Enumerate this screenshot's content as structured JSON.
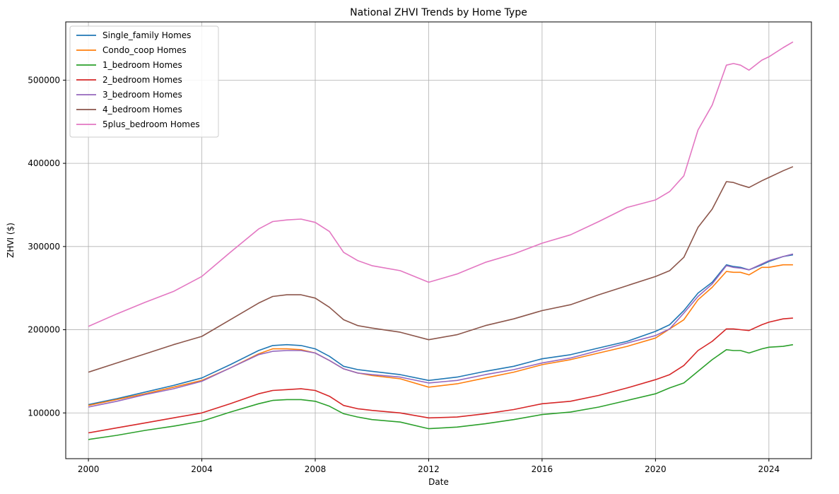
{
  "chart_data": {
    "type": "line",
    "title": "National ZHVI Trends by Home Type",
    "xlabel": "Date",
    "ylabel": "ZHVI ($)",
    "xlim": [
      1999.2,
      2025.5
    ],
    "ylim": [
      45000,
      570000
    ],
    "xticks": [
      2000,
      2004,
      2008,
      2012,
      2016,
      2020,
      2024
    ],
    "xtick_labels": [
      "2000",
      "2004",
      "2008",
      "2012",
      "2016",
      "2020",
      "2024"
    ],
    "yticks": [
      100000,
      200000,
      300000,
      400000,
      500000
    ],
    "ytick_labels": [
      "100000",
      "200000",
      "300000",
      "400000",
      "500000"
    ],
    "grid": true,
    "legend_position": "top-left",
    "x": [
      2000.0,
      2001.0,
      2002.0,
      2003.0,
      2004.0,
      2005.0,
      2006.0,
      2006.5,
      2007.0,
      2007.5,
      2008.0,
      2008.5,
      2009.0,
      2009.5,
      2010.0,
      2011.0,
      2012.0,
      2013.0,
      2014.0,
      2015.0,
      2016.0,
      2017.0,
      2018.0,
      2019.0,
      2020.0,
      2020.5,
      2021.0,
      2021.5,
      2022.0,
      2022.5,
      2022.75,
      2023.0,
      2023.3,
      2023.75,
      2024.0,
      2024.5,
      2024.85
    ],
    "series": [
      {
        "name": "Single_family Homes",
        "color": "#1f77b4",
        "values": [
          110000,
          117000,
          125000,
          133000,
          142000,
          158000,
          175000,
          181000,
          182000,
          181000,
          177000,
          168000,
          156000,
          152000,
          150000,
          146000,
          139000,
          143000,
          150000,
          156000,
          165000,
          170000,
          178000,
          186000,
          198000,
          206000,
          223000,
          244000,
          257000,
          278000,
          276000,
          275000,
          272000,
          278000,
          282000,
          288000,
          290000
        ]
      },
      {
        "name": "Condo_coop Homes",
        "color": "#ff7f0e",
        "values": [
          109000,
          116000,
          123000,
          131000,
          139000,
          154000,
          171000,
          177000,
          177000,
          176000,
          172000,
          163000,
          153000,
          148000,
          145000,
          141000,
          131000,
          135000,
          142000,
          149000,
          158000,
          164000,
          172000,
          180000,
          190000,
          201000,
          212000,
          236000,
          251000,
          270000,
          269000,
          269000,
          266000,
          275000,
          275000,
          278000,
          278000
        ]
      },
      {
        "name": "1_bedroom Homes",
        "color": "#2ca02c",
        "values": [
          68000,
          73000,
          79000,
          84000,
          90000,
          101000,
          111000,
          115000,
          116000,
          116000,
          114000,
          108000,
          99000,
          95000,
          92000,
          89000,
          81000,
          83000,
          87000,
          92000,
          98000,
          101000,
          107000,
          115000,
          123000,
          130000,
          136000,
          150000,
          164000,
          176000,
          175000,
          175000,
          172000,
          177000,
          179000,
          180000,
          182000
        ]
      },
      {
        "name": "2_bedroom Homes",
        "color": "#d62728",
        "values": [
          76000,
          82000,
          88000,
          94000,
          100000,
          111000,
          123000,
          127000,
          128000,
          129000,
          127000,
          120000,
          109000,
          105000,
          103000,
          100000,
          94000,
          95000,
          99000,
          104000,
          111000,
          114000,
          121000,
          130000,
          140000,
          146000,
          157000,
          175000,
          186000,
          201000,
          201000,
          200000,
          199000,
          206000,
          209000,
          213000,
          214000
        ]
      },
      {
        "name": "3_bedroom Homes",
        "color": "#9467bd",
        "values": [
          107000,
          114000,
          122000,
          129000,
          138000,
          154000,
          170000,
          174000,
          175000,
          175000,
          172000,
          163000,
          153000,
          148000,
          146000,
          143000,
          136000,
          139000,
          146000,
          152000,
          160000,
          166000,
          175000,
          184000,
          193000,
          201000,
          220000,
          240000,
          255000,
          277000,
          275000,
          274000,
          272000,
          279000,
          283000,
          288000,
          291000
        ]
      },
      {
        "name": "4_bedroom Homes",
        "color": "#8c564b",
        "values": [
          149000,
          160000,
          171000,
          182000,
          192000,
          212000,
          232000,
          240000,
          242000,
          242000,
          238000,
          227000,
          212000,
          205000,
          202000,
          197000,
          188000,
          194000,
          205000,
          213000,
          223000,
          230000,
          242000,
          253000,
          264000,
          271000,
          287000,
          323000,
          345000,
          378000,
          377000,
          374000,
          371000,
          379000,
          383000,
          391000,
          396000
        ]
      },
      {
        "name": "5plus_bedroom Homes",
        "color": "#e377c2",
        "values": [
          204000,
          219000,
          233000,
          246000,
          264000,
          293000,
          321000,
          330000,
          332000,
          333000,
          329000,
          318000,
          293000,
          283000,
          277000,
          271000,
          257000,
          267000,
          281000,
          291000,
          304000,
          314000,
          330000,
          347000,
          356000,
          366000,
          385000,
          440000,
          470000,
          518000,
          520000,
          518000,
          512000,
          524000,
          528000,
          539000,
          546000
        ]
      }
    ]
  }
}
